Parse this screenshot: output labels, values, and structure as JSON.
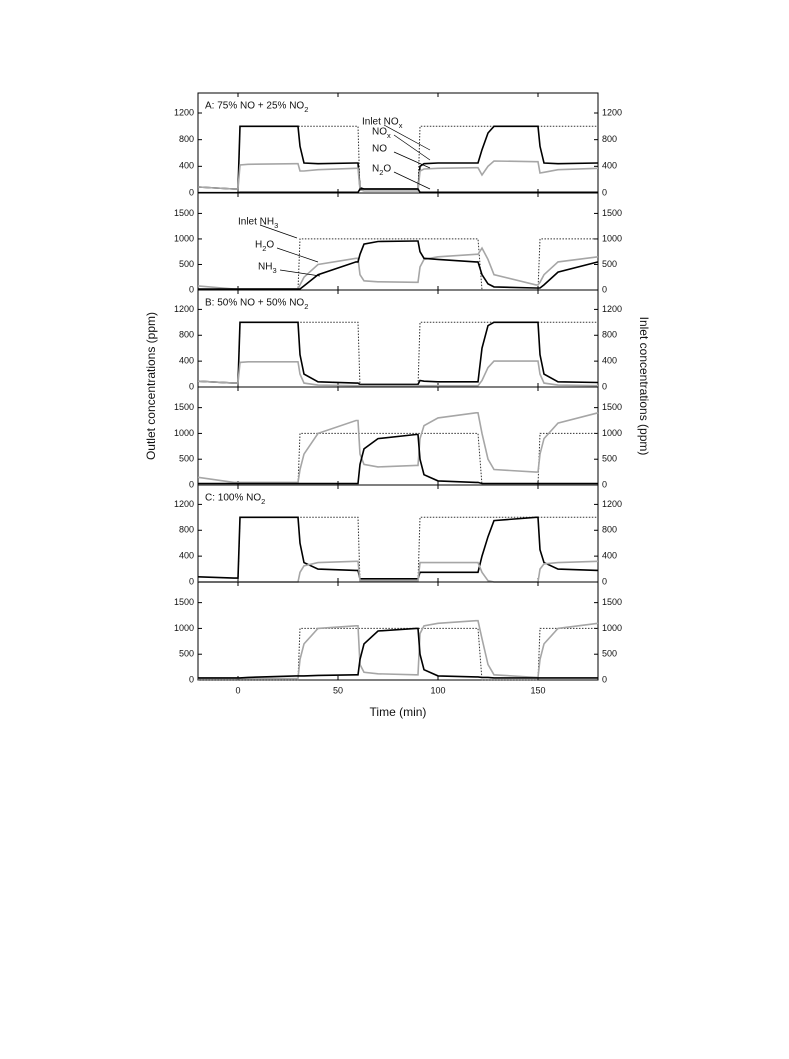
{
  "figure": {
    "xlabel": "Time (min)",
    "ylabel": "Outlet concentrations (ppm)",
    "y2label": "Inlet concentrations (ppm)"
  },
  "chart_data": [
    {
      "type": "line",
      "title": "A: 75% NO + 25% NO2",
      "x": [
        -20,
        -2,
        0,
        1,
        5,
        29,
        30,
        31,
        33,
        40,
        59,
        60,
        61,
        63,
        70,
        89,
        90,
        91,
        93,
        100,
        119,
        120,
        122,
        125,
        128,
        149,
        150,
        151,
        153,
        160,
        180
      ],
      "xlim": [
        -20,
        180
      ],
      "xticks": [
        0,
        50,
        100,
        150
      ],
      "ylim": [
        0,
        1500
      ],
      "yticks": [
        0,
        400,
        800,
        1200
      ],
      "y2lim": [
        0,
        1500
      ],
      "y2ticks": [
        0,
        400,
        800,
        1200
      ],
      "series": [
        {
          "name": "Inlet NOx",
          "color": "#333333",
          "style": "dotted",
          "axis": "y2",
          "values": [
            0,
            0,
            0,
            1000,
            1000,
            1000,
            1000,
            1000,
            1000,
            1000,
            1000,
            1000,
            0,
            0,
            0,
            0,
            0,
            1000,
            1000,
            1000,
            1000,
            1000,
            1000,
            1000,
            1000,
            1000,
            1000,
            1000,
            1000,
            1000,
            1000
          ]
        },
        {
          "name": "NOx",
          "color": "#000000",
          "style": "solid",
          "values": [
            90,
            60,
            60,
            1000,
            1000,
            1000,
            1000,
            700,
            450,
            440,
            450,
            450,
            80,
            60,
            60,
            60,
            60,
            400,
            440,
            450,
            450,
            450,
            650,
            900,
            1000,
            1000,
            1000,
            700,
            450,
            440,
            450
          ]
        },
        {
          "name": "NO",
          "color": "#a6a6a6",
          "style": "solid",
          "values": [
            90,
            60,
            60,
            420,
            430,
            440,
            440,
            330,
            330,
            350,
            370,
            370,
            50,
            30,
            30,
            30,
            30,
            330,
            360,
            370,
            380,
            380,
            270,
            400,
            480,
            470,
            470,
            300,
            310,
            350,
            370
          ]
        },
        {
          "name": "N2O",
          "color": "#000000",
          "style": "solid",
          "values": [
            5,
            5,
            5,
            10,
            10,
            10,
            10,
            10,
            10,
            10,
            10,
            10,
            60,
            60,
            60,
            60,
            60,
            10,
            10,
            10,
            10,
            10,
            10,
            10,
            10,
            10,
            10,
            10,
            10,
            10,
            10
          ]
        }
      ]
    },
    {
      "type": "line",
      "x": [
        -20,
        -2,
        0,
        1,
        5,
        29,
        30,
        31,
        33,
        40,
        59,
        60,
        61,
        63,
        70,
        89,
        90,
        91,
        93,
        100,
        119,
        120,
        122,
        125,
        128,
        149,
        150,
        151,
        153,
        160,
        180
      ],
      "xlim": [
        -20,
        180
      ],
      "xticks": [
        0,
        50,
        100,
        150
      ],
      "ylim": [
        0,
        1900
      ],
      "yticks": [
        0,
        500,
        1000,
        1500
      ],
      "y2lim": [
        0,
        1900
      ],
      "y2ticks": [
        0,
        500,
        1000,
        1500
      ],
      "series": [
        {
          "name": "Inlet NH3",
          "color": "#333333",
          "style": "dotted",
          "axis": "y2",
          "values": [
            0,
            0,
            0,
            0,
            0,
            0,
            0,
            1000,
            1000,
            1000,
            1000,
            1000,
            1000,
            1000,
            1000,
            1000,
            1000,
            1000,
            1000,
            1000,
            1000,
            1000,
            0,
            0,
            0,
            0,
            0,
            1000,
            1000,
            1000,
            1000
          ]
        },
        {
          "name": "H2O",
          "color": "#a6a6a6",
          "style": "solid",
          "values": [
            80,
            20,
            20,
            20,
            20,
            20,
            20,
            100,
            250,
            500,
            620,
            620,
            300,
            180,
            160,
            150,
            150,
            450,
            600,
            650,
            700,
            700,
            820,
            600,
            300,
            100,
            100,
            150,
            300,
            550,
            650
          ]
        },
        {
          "name": "NH3",
          "color": "#000000",
          "style": "solid",
          "values": [
            20,
            20,
            20,
            20,
            20,
            20,
            20,
            20,
            80,
            300,
            550,
            550,
            700,
            900,
            950,
            960,
            960,
            750,
            620,
            600,
            550,
            550,
            300,
            120,
            60,
            40,
            40,
            40,
            100,
            350,
            550
          ]
        }
      ]
    },
    {
      "type": "line",
      "title": "B: 50% NO + 50% NO2",
      "x": [
        -20,
        -2,
        0,
        1,
        5,
        29,
        30,
        31,
        33,
        40,
        59,
        60,
        61,
        63,
        70,
        89,
        90,
        91,
        93,
        100,
        119,
        120,
        122,
        125,
        128,
        149,
        150,
        151,
        153,
        160,
        180
      ],
      "xlim": [
        -20,
        180
      ],
      "xticks": [
        0,
        50,
        100,
        150
      ],
      "ylim": [
        0,
        1500
      ],
      "yticks": [
        0,
        400,
        800,
        1200
      ],
      "y2lim": [
        0,
        1500
      ],
      "y2ticks": [
        0,
        400,
        800,
        1200
      ],
      "series": [
        {
          "color": "#333333",
          "style": "dotted",
          "axis": "y2",
          "values": [
            0,
            0,
            0,
            1000,
            1000,
            1000,
            1000,
            1000,
            1000,
            1000,
            1000,
            1000,
            0,
            0,
            0,
            0,
            0,
            1000,
            1000,
            1000,
            1000,
            1000,
            1000,
            1000,
            1000,
            1000,
            1000,
            1000,
            1000,
            1000,
            1000
          ]
        },
        {
          "color": "#000000",
          "style": "solid",
          "values": [
            90,
            60,
            60,
            1000,
            1000,
            1000,
            1000,
            500,
            200,
            80,
            60,
            60,
            40,
            40,
            40,
            40,
            40,
            100,
            90,
            80,
            80,
            80,
            600,
            950,
            1000,
            1000,
            1000,
            500,
            200,
            80,
            70
          ]
        },
        {
          "color": "#a6a6a6",
          "style": "solid",
          "values": [
            90,
            60,
            60,
            380,
            390,
            390,
            390,
            200,
            60,
            30,
            20,
            20,
            20,
            20,
            20,
            20,
            20,
            20,
            20,
            20,
            20,
            20,
            100,
            300,
            400,
            400,
            400,
            200,
            60,
            30,
            20
          ]
        }
      ]
    },
    {
      "type": "line",
      "x": [
        -20,
        -2,
        0,
        1,
        5,
        29,
        30,
        31,
        33,
        40,
        59,
        60,
        61,
        63,
        70,
        89,
        90,
        91,
        93,
        100,
        119,
        120,
        122,
        125,
        128,
        149,
        150,
        151,
        153,
        160,
        180
      ],
      "xlim": [
        -20,
        180
      ],
      "xticks": [
        0,
        50,
        100,
        150
      ],
      "ylim": [
        0,
        1900
      ],
      "yticks": [
        0,
        500,
        1000,
        1500
      ],
      "y2lim": [
        0,
        1900
      ],
      "y2ticks": [
        0,
        500,
        1000,
        1500
      ],
      "series": [
        {
          "color": "#333333",
          "style": "dotted",
          "axis": "y2",
          "values": [
            0,
            0,
            0,
            0,
            0,
            0,
            0,
            1000,
            1000,
            1000,
            1000,
            1000,
            1000,
            1000,
            1000,
            1000,
            1000,
            1000,
            1000,
            1000,
            1000,
            1000,
            0,
            0,
            0,
            0,
            0,
            1000,
            1000,
            1000,
            1000
          ]
        },
        {
          "color": "#a6a6a6",
          "style": "solid",
          "values": [
            150,
            50,
            50,
            50,
            50,
            50,
            50,
            300,
            600,
            1000,
            1250,
            1250,
            600,
            400,
            350,
            380,
            380,
            900,
            1150,
            1300,
            1400,
            1400,
            1000,
            500,
            300,
            250,
            250,
            600,
            900,
            1200,
            1400
          ]
        },
        {
          "color": "#000000",
          "style": "solid",
          "values": [
            30,
            30,
            30,
            30,
            30,
            30,
            30,
            30,
            30,
            30,
            30,
            30,
            400,
            700,
            900,
            980,
            980,
            500,
            200,
            80,
            50,
            50,
            30,
            30,
            30,
            30,
            30,
            30,
            30,
            30,
            30
          ]
        }
      ]
    },
    {
      "type": "line",
      "title": "C: 100% NO2",
      "x": [
        -20,
        -2,
        0,
        1,
        5,
        29,
        30,
        31,
        33,
        40,
        59,
        60,
        61,
        63,
        70,
        89,
        90,
        91,
        93,
        100,
        119,
        120,
        122,
        125,
        128,
        149,
        150,
        151,
        153,
        160,
        180
      ],
      "xlim": [
        -20,
        180
      ],
      "xticks": [
        0,
        50,
        100,
        150
      ],
      "ylim": [
        0,
        1500
      ],
      "yticks": [
        0,
        400,
        800,
        1200
      ],
      "y2lim": [
        0,
        1500
      ],
      "y2ticks": [
        0,
        400,
        800,
        1200
      ],
      "series": [
        {
          "color": "#333333",
          "style": "dotted",
          "axis": "y2",
          "values": [
            0,
            0,
            0,
            1000,
            1000,
            1000,
            1000,
            1000,
            1000,
            1000,
            1000,
            1000,
            0,
            0,
            0,
            0,
            0,
            1000,
            1000,
            1000,
            1000,
            1000,
            1000,
            1000,
            1000,
            1000,
            1000,
            1000,
            1000,
            1000,
            1000
          ]
        },
        {
          "color": "#000000",
          "style": "solid",
          "values": [
            80,
            60,
            60,
            1000,
            1000,
            1000,
            1000,
            600,
            300,
            200,
            180,
            180,
            50,
            50,
            50,
            50,
            50,
            150,
            150,
            150,
            150,
            150,
            400,
            700,
            950,
            1000,
            1000,
            500,
            300,
            200,
            180
          ]
        },
        {
          "color": "#a6a6a6",
          "style": "solid",
          "values": [
            0,
            0,
            0,
            0,
            0,
            0,
            0,
            150,
            250,
            300,
            320,
            320,
            20,
            20,
            20,
            20,
            20,
            300,
            300,
            300,
            300,
            300,
            150,
            20,
            0,
            0,
            0,
            200,
            280,
            300,
            320
          ]
        }
      ]
    },
    {
      "type": "line",
      "x": [
        -20,
        -2,
        0,
        1,
        5,
        29,
        30,
        31,
        33,
        40,
        59,
        60,
        61,
        63,
        70,
        89,
        90,
        91,
        93,
        100,
        119,
        120,
        122,
        125,
        128,
        149,
        150,
        151,
        153,
        160,
        180
      ],
      "xlim": [
        -20,
        180
      ],
      "xticks": [
        0,
        50,
        100,
        150
      ],
      "xtick_labels": true,
      "ylim": [
        0,
        1900
      ],
      "yticks": [
        0,
        500,
        1000,
        1500
      ],
      "y2lim": [
        0,
        1900
      ],
      "y2ticks": [
        0,
        500,
        1000,
        1500
      ],
      "series": [
        {
          "color": "#333333",
          "style": "dotted",
          "axis": "y2",
          "values": [
            0,
            0,
            0,
            0,
            0,
            0,
            0,
            1000,
            1000,
            1000,
            1000,
            1000,
            1000,
            1000,
            1000,
            1000,
            1000,
            1000,
            1000,
            1000,
            1000,
            1000,
            0,
            0,
            0,
            0,
            0,
            1000,
            1000,
            1000,
            1000
          ]
        },
        {
          "color": "#a6a6a6",
          "style": "solid",
          "values": [
            30,
            30,
            30,
            30,
            30,
            30,
            30,
            400,
            700,
            1000,
            1050,
            1050,
            300,
            150,
            120,
            100,
            100,
            900,
            1050,
            1100,
            1150,
            1150,
            800,
            300,
            100,
            50,
            50,
            400,
            700,
            1000,
            1100
          ]
        },
        {
          "color": "#000000",
          "style": "solid",
          "values": [
            40,
            40,
            40,
            40,
            50,
            80,
            80,
            80,
            80,
            90,
            100,
            100,
            400,
            700,
            950,
            1000,
            1000,
            500,
            200,
            80,
            60,
            60,
            50,
            50,
            40,
            40,
            40,
            40,
            40,
            40,
            40
          ]
        }
      ]
    }
  ]
}
